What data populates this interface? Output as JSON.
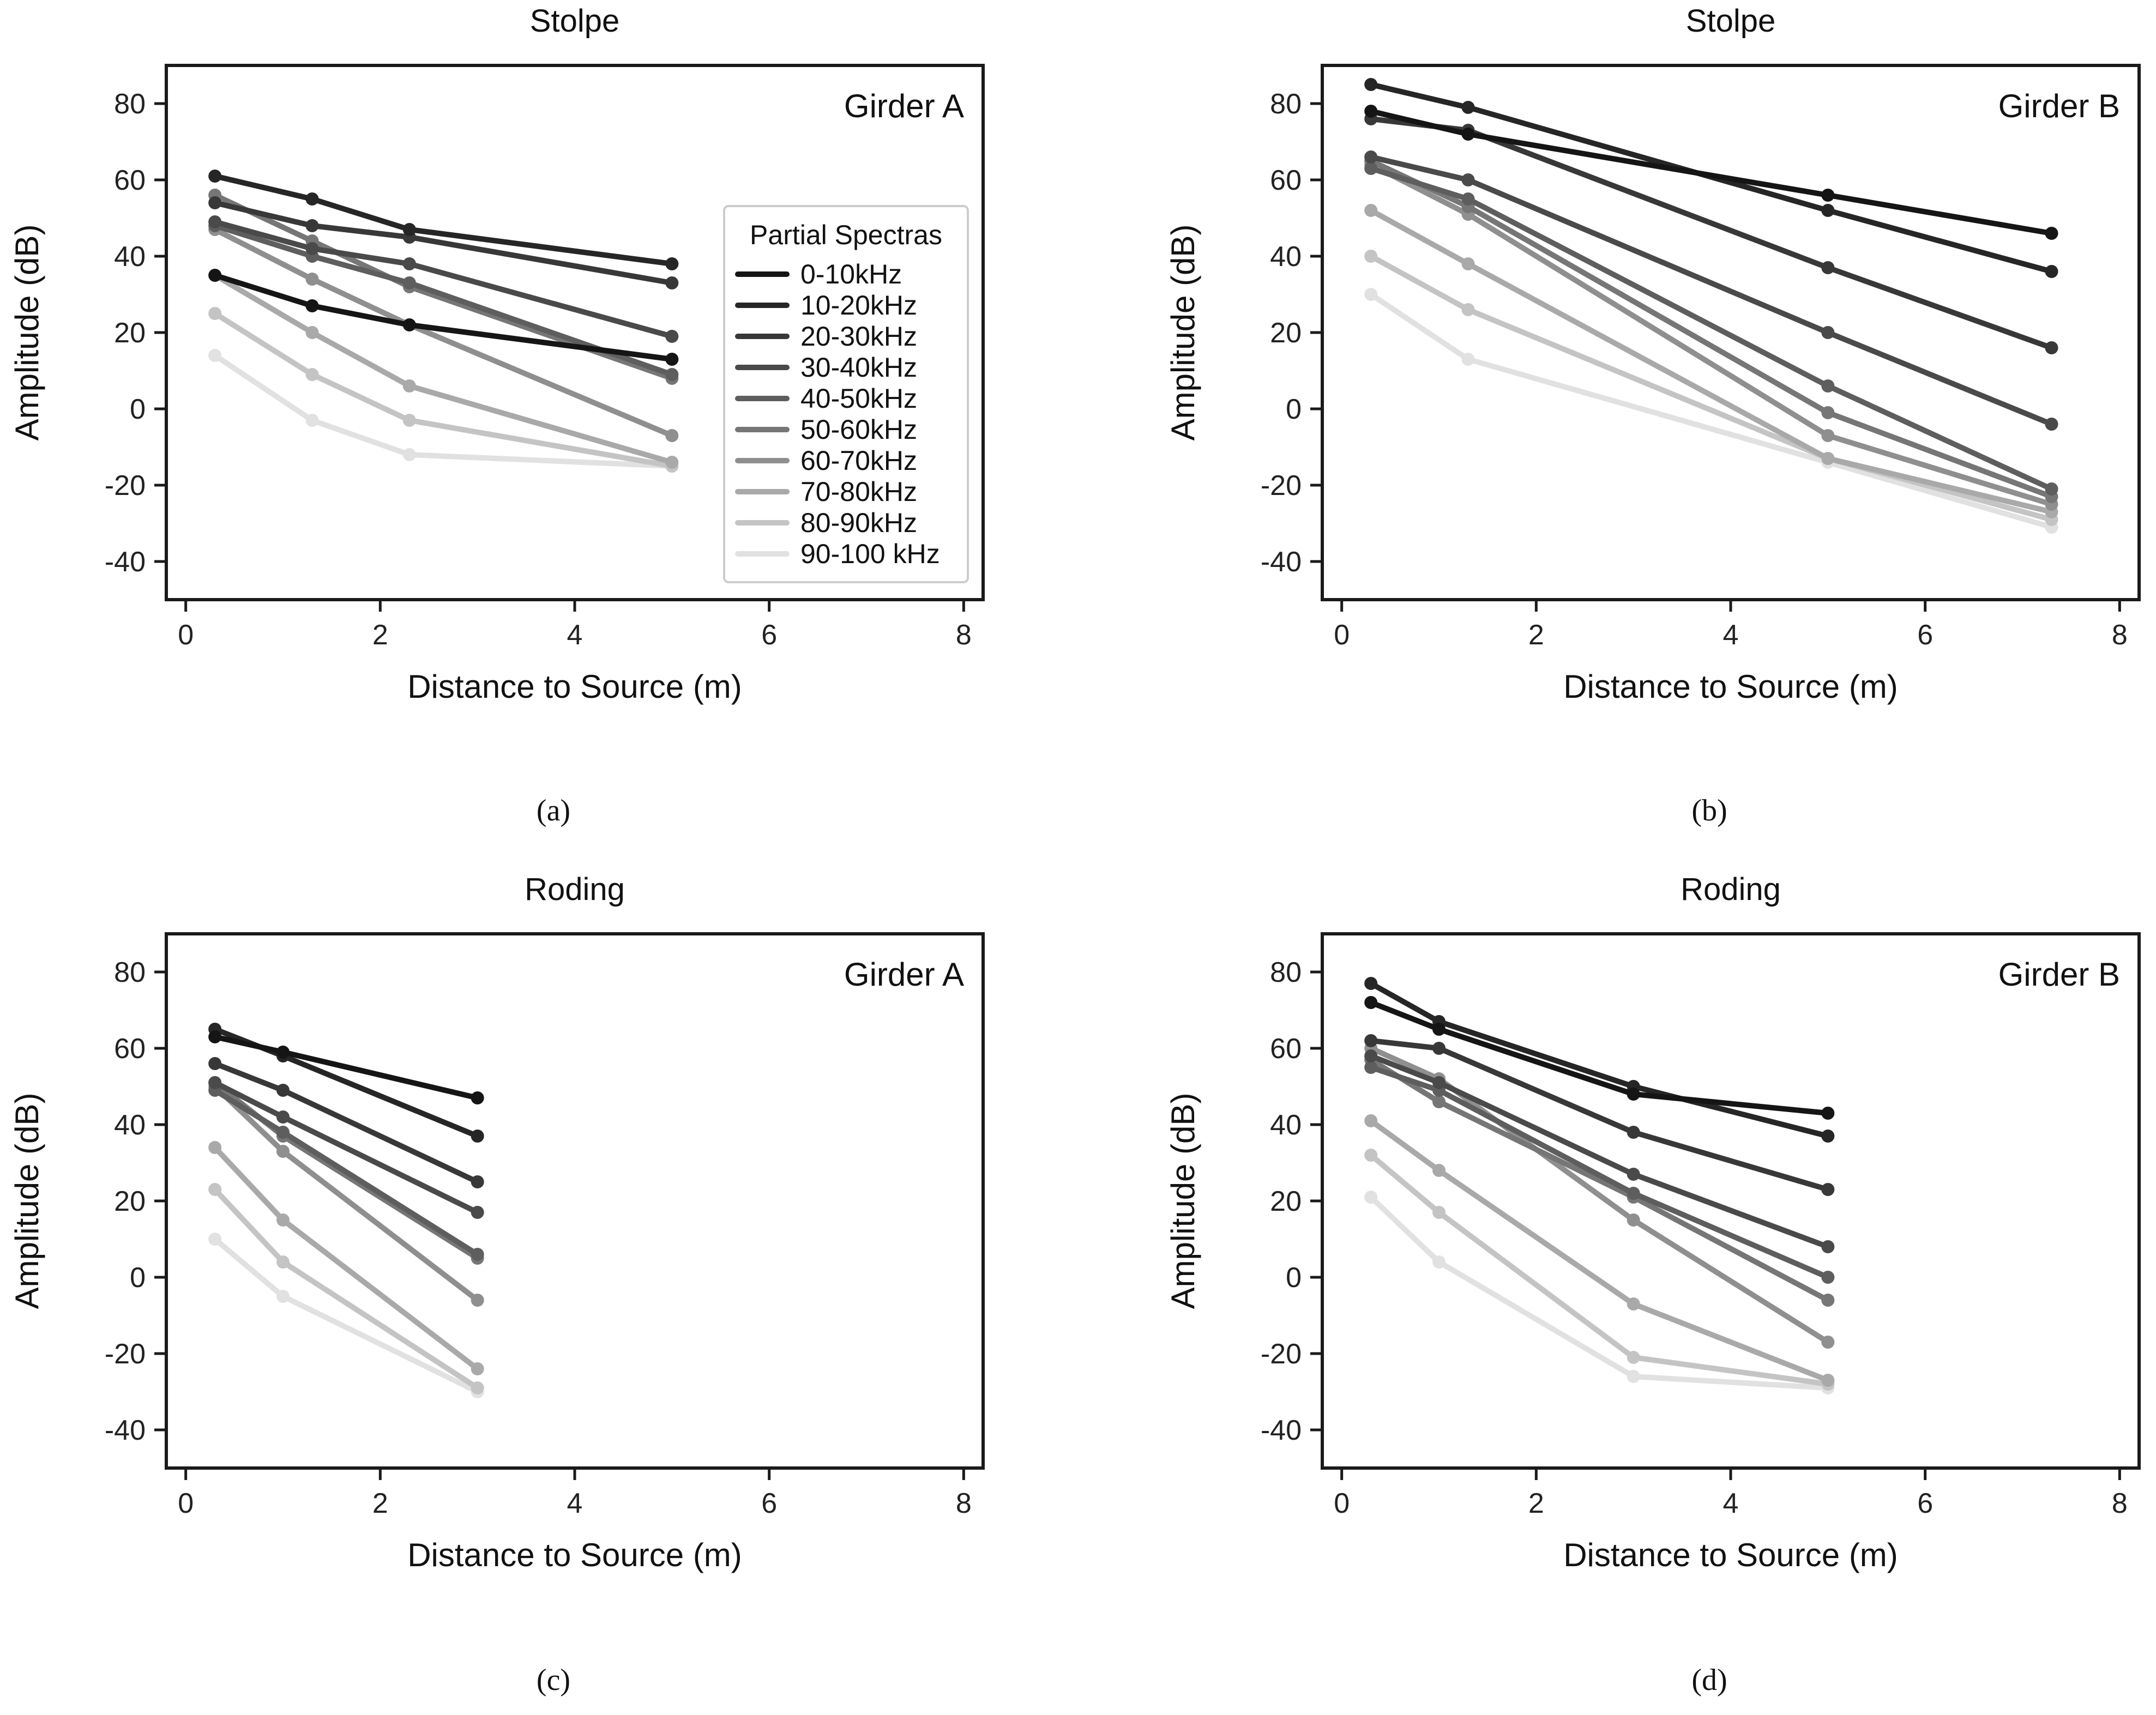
{
  "line_colors": [
    "#151515",
    "#262626",
    "#383838",
    "#4a4a4a",
    "#5e5e5e",
    "#767676",
    "#8f8f8f",
    "#a9a9a9",
    "#c4c4c4",
    "#e1e1e1"
  ],
  "legend": {
    "title": "Partial Spectras",
    "entries": [
      "0-10kHz",
      "10-20kHz",
      "20-30kHz",
      "30-40kHz",
      "40-50kHz",
      "50-60kHz",
      "60-70kHz",
      "70-80kHz",
      "80-90kHz",
      "90-100 kHz"
    ]
  },
  "chart_data": [
    {
      "type": "line",
      "panel_label": "(a)",
      "title": "Stolpe",
      "annotation": "Girder A",
      "xlabel": "Distance to Source (m)",
      "ylabel": "Amplitude (dB)",
      "xlim": [
        -0.2,
        8.2
      ],
      "ylim": [
        -50,
        90
      ],
      "xticks": [
        0,
        2,
        4,
        6,
        8
      ],
      "yticks": [
        -40,
        -20,
        0,
        20,
        40,
        60,
        80
      ],
      "grid": false,
      "legend_position": "right-center",
      "x": [
        0.3,
        1.3,
        2.3,
        5.0
      ],
      "series": [
        {
          "name": "0-10kHz",
          "values": [
            35,
            27,
            22,
            13
          ]
        },
        {
          "name": "10-20kHz",
          "values": [
            61,
            55,
            47,
            38
          ]
        },
        {
          "name": "20-30kHz",
          "values": [
            54,
            48,
            45,
            33
          ]
        },
        {
          "name": "30-40kHz",
          "values": [
            49,
            42,
            38,
            19
          ]
        },
        {
          "name": "40-50kHz",
          "values": [
            48,
            40,
            33,
            9
          ]
        },
        {
          "name": "50-60kHz",
          "values": [
            56,
            44,
            32,
            8
          ]
        },
        {
          "name": "60-70kHz",
          "values": [
            47,
            34,
            22,
            -7
          ]
        },
        {
          "name": "70-80kHz",
          "values": [
            35,
            20,
            6,
            -14
          ]
        },
        {
          "name": "80-90kHz",
          "values": [
            25,
            9,
            -3,
            -15
          ]
        },
        {
          "name": "90-100 kHz",
          "values": [
            14,
            -3,
            -12,
            -15
          ]
        }
      ]
    },
    {
      "type": "line",
      "panel_label": "(b)",
      "title": "Stolpe",
      "annotation": "Girder B",
      "xlabel": "Distance to Source (m)",
      "ylabel": "Amplitude (dB)",
      "xlim": [
        -0.2,
        8.2
      ],
      "ylim": [
        -50,
        90
      ],
      "xticks": [
        0,
        2,
        4,
        6,
        8
      ],
      "yticks": [
        -40,
        -20,
        0,
        20,
        40,
        60,
        80
      ],
      "grid": false,
      "x": [
        0.3,
        1.3,
        5.0,
        7.3
      ],
      "series": [
        {
          "name": "0-10kHz",
          "values": [
            78,
            72,
            56,
            46
          ]
        },
        {
          "name": "10-20kHz",
          "values": [
            85,
            79,
            52,
            36
          ]
        },
        {
          "name": "20-30kHz",
          "values": [
            76,
            73,
            37,
            16
          ]
        },
        {
          "name": "30-40kHz",
          "values": [
            66,
            60,
            20,
            -4
          ]
        },
        {
          "name": "40-50kHz",
          "values": [
            63,
            55,
            6,
            -21
          ]
        },
        {
          "name": "50-60kHz",
          "values": [
            65,
            53,
            -1,
            -23
          ]
        },
        {
          "name": "60-70kHz",
          "values": [
            64,
            51,
            -7,
            -25
          ]
        },
        {
          "name": "70-80kHz",
          "values": [
            52,
            38,
            -13,
            -27
          ]
        },
        {
          "name": "80-90kHz",
          "values": [
            40,
            26,
            -13,
            -29
          ]
        },
        {
          "name": "90-100 kHz",
          "values": [
            30,
            13,
            -14,
            -31
          ]
        }
      ]
    },
    {
      "type": "line",
      "panel_label": "(c)",
      "title": "Roding",
      "annotation": "Girder A",
      "xlabel": "Distance to Source (m)",
      "ylabel": "Amplitude (dB)",
      "xlim": [
        -0.2,
        8.2
      ],
      "ylim": [
        -50,
        90
      ],
      "xticks": [
        0,
        2,
        4,
        6,
        8
      ],
      "yticks": [
        -40,
        -20,
        0,
        20,
        40,
        60,
        80
      ],
      "grid": false,
      "x": [
        0.3,
        1.0,
        3.0
      ],
      "series": [
        {
          "name": "0-10kHz",
          "values": [
            63,
            59,
            47
          ]
        },
        {
          "name": "10-20kHz",
          "values": [
            65,
            58,
            37
          ]
        },
        {
          "name": "20-30kHz",
          "values": [
            56,
            49,
            25
          ]
        },
        {
          "name": "30-40kHz",
          "values": [
            51,
            42,
            17
          ]
        },
        {
          "name": "40-50kHz",
          "values": [
            49,
            38,
            6
          ]
        },
        {
          "name": "50-60kHz",
          "values": [
            51,
            37,
            5
          ]
        },
        {
          "name": "60-70kHz",
          "values": [
            50,
            33,
            -6
          ]
        },
        {
          "name": "70-80kHz",
          "values": [
            34,
            15,
            -24
          ]
        },
        {
          "name": "80-90kHz",
          "values": [
            23,
            4,
            -29
          ]
        },
        {
          "name": "90-100 kHz",
          "values": [
            10,
            -5,
            -30
          ]
        }
      ]
    },
    {
      "type": "line",
      "panel_label": "(d)",
      "title": "Roding",
      "annotation": "Girder B",
      "xlabel": "Distance to Source (m)",
      "ylabel": "Amplitude (dB)",
      "xlim": [
        -0.2,
        8.2
      ],
      "ylim": [
        -50,
        90
      ],
      "xticks": [
        0,
        2,
        4,
        6,
        8
      ],
      "yticks": [
        -40,
        -20,
        0,
        20,
        40,
        60,
        80
      ],
      "grid": false,
      "x": [
        0.3,
        1.0,
        3.0,
        5.0
      ],
      "series": [
        {
          "name": "0-10kHz",
          "values": [
            72,
            65,
            48,
            43
          ]
        },
        {
          "name": "10-20kHz",
          "values": [
            77,
            67,
            50,
            37
          ]
        },
        {
          "name": "20-30kHz",
          "values": [
            62,
            60,
            38,
            23
          ]
        },
        {
          "name": "30-40kHz",
          "values": [
            58,
            51,
            27,
            8
          ]
        },
        {
          "name": "40-50kHz",
          "values": [
            55,
            49,
            22,
            0
          ]
        },
        {
          "name": "50-60kHz",
          "values": [
            57,
            46,
            21,
            -6
          ]
        },
        {
          "name": "60-70kHz",
          "values": [
            60,
            52,
            15,
            -17
          ]
        },
        {
          "name": "70-80kHz",
          "values": [
            41,
            28,
            -7,
            -27
          ]
        },
        {
          "name": "80-90kHz",
          "values": [
            32,
            17,
            -21,
            -28
          ]
        },
        {
          "name": "90-100 kHz",
          "values": [
            21,
            4,
            -26,
            -29
          ]
        }
      ]
    }
  ]
}
